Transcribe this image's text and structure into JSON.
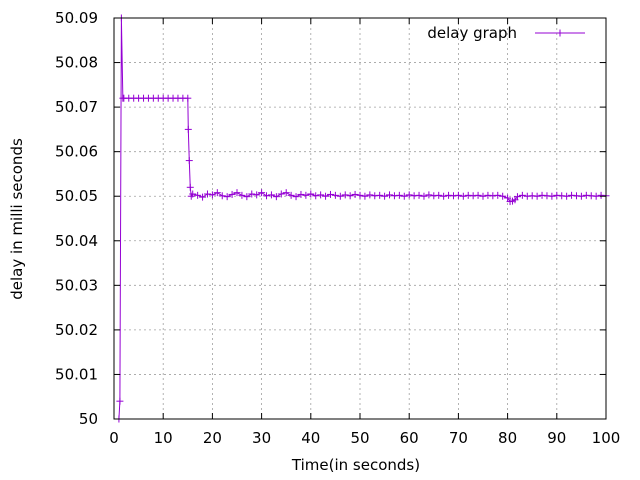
{
  "chart_data": {
    "type": "line",
    "xlabel": "Time(in seconds)",
    "ylabel": "delay in milli seconds",
    "xlim": [
      0,
      100
    ],
    "ylim": [
      50,
      50.09
    ],
    "xticks": [
      0,
      10,
      20,
      30,
      40,
      50,
      60,
      70,
      80,
      90,
      100
    ],
    "yticks": [
      50,
      50.01,
      50.02,
      50.03,
      50.04,
      50.05,
      50.06,
      50.07,
      50.08,
      50.09
    ],
    "ytick_labels": [
      "50",
      "50.01",
      "50.02",
      "50.03",
      "50.04",
      "50.05",
      "50.06",
      "50.07",
      "50.08",
      "50.09"
    ],
    "grid": true,
    "legend_position": "top-right",
    "series": [
      {
        "name": "delay graph",
        "color": "#9400d3",
        "marker": "plus",
        "x": [
          1.0,
          1.2,
          1.5,
          1.8,
          2,
          3,
          4,
          5,
          6,
          7,
          8,
          9,
          10,
          11,
          12,
          13,
          14,
          15,
          15.1,
          15.3,
          15.5,
          15.7,
          16,
          17,
          18,
          19,
          20,
          21,
          22,
          23,
          24,
          25,
          26,
          27,
          28,
          29,
          30,
          31,
          32,
          33,
          34,
          35,
          36,
          37,
          38,
          39,
          40,
          41,
          42,
          43,
          44,
          45,
          46,
          47,
          48,
          49,
          50,
          51,
          52,
          53,
          54,
          55,
          56,
          57,
          58,
          59,
          60,
          61,
          62,
          63,
          64,
          65,
          66,
          67,
          68,
          69,
          70,
          71,
          72,
          73,
          74,
          75,
          76,
          77,
          78,
          79,
          80,
          80.5,
          81,
          81.5,
          82,
          83,
          84,
          85,
          86,
          87,
          88,
          89,
          90,
          91,
          92,
          93,
          94,
          95,
          96,
          97,
          98,
          99,
          100
        ],
        "values": [
          50.0,
          50.004,
          50.09,
          50.072,
          50.072,
          50.072,
          50.072,
          50.072,
          50.072,
          50.072,
          50.072,
          50.072,
          50.072,
          50.072,
          50.072,
          50.072,
          50.072,
          50.072,
          50.065,
          50.058,
          50.052,
          50.05,
          50.0505,
          50.0502,
          50.0498,
          50.0505,
          50.0503,
          50.0508,
          50.0501,
          50.0499,
          50.0504,
          50.0508,
          50.0502,
          50.0499,
          50.0505,
          50.0503,
          50.0508,
          50.0501,
          50.0503,
          50.0499,
          50.0505,
          50.0508,
          50.0502,
          50.0499,
          50.0504,
          50.0502,
          50.0505,
          50.0501,
          50.0503,
          50.05,
          50.0504,
          50.0502,
          50.05,
          50.0503,
          50.0501,
          50.0504,
          50.0502,
          50.05,
          50.0503,
          50.0501,
          50.0502,
          50.05,
          50.0503,
          50.0501,
          50.0502,
          50.05,
          50.0503,
          50.0501,
          50.0502,
          50.05,
          50.0503,
          50.0501,
          50.0502,
          50.05,
          50.0502,
          50.0501,
          50.0502,
          50.05,
          50.0502,
          50.0501,
          50.0502,
          50.05,
          50.0502,
          50.0501,
          50.0502,
          50.05,
          50.0496,
          50.0488,
          50.0489,
          50.0492,
          50.0499,
          50.0502,
          50.05,
          50.0501,
          50.05,
          50.0502,
          50.0501,
          50.05,
          50.0502,
          50.0501,
          50.05,
          50.0502,
          50.0501,
          50.05,
          50.0502,
          50.0501,
          50.05,
          50.0502,
          50.0501
        ]
      }
    ]
  }
}
